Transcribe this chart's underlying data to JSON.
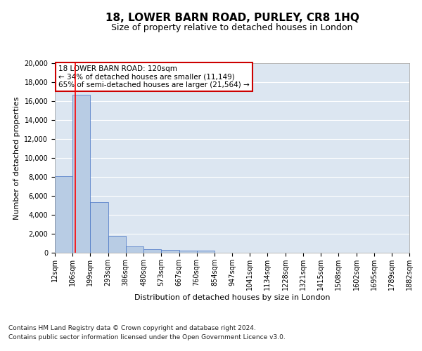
{
  "title": "18, LOWER BARN ROAD, PURLEY, CR8 1HQ",
  "subtitle": "Size of property relative to detached houses in London",
  "xlabel": "Distribution of detached houses by size in London",
  "ylabel": "Number of detached properties",
  "footer_line1": "Contains HM Land Registry data © Crown copyright and database right 2024.",
  "footer_line2": "Contains public sector information licensed under the Open Government Licence v3.0.",
  "annotation_title": "18 LOWER BARN ROAD: 120sqm",
  "annotation_line1": "← 34% of detached houses are smaller (11,149)",
  "annotation_line2": "65% of semi-detached houses are larger (21,564) →",
  "bar_color": "#b8cce4",
  "bar_edge_color": "#4472c4",
  "red_line_color": "#ff0000",
  "property_size_sqm": 120,
  "bin_edges": [
    12,
    106,
    199,
    293,
    386,
    480,
    573,
    667,
    760,
    854,
    947,
    1041,
    1134,
    1228,
    1321,
    1415,
    1508,
    1602,
    1695,
    1789,
    1882
  ],
  "bar_heights": [
    8100,
    16700,
    5300,
    1750,
    700,
    370,
    290,
    230,
    210,
    0,
    0,
    0,
    0,
    0,
    0,
    0,
    0,
    0,
    0,
    0
  ],
  "ylim": [
    0,
    20000
  ],
  "ytick_interval": 2000,
  "background_color": "#ffffff",
  "plot_bg_color": "#dce6f1",
  "grid_color": "#ffffff",
  "annotation_box_color": "#ffffff",
  "annotation_box_edgecolor": "#cc0000",
  "title_fontsize": 11,
  "subtitle_fontsize": 9,
  "axis_label_fontsize": 8,
  "tick_fontsize": 7,
  "annotation_fontsize": 7.5,
  "footer_fontsize": 6.5
}
